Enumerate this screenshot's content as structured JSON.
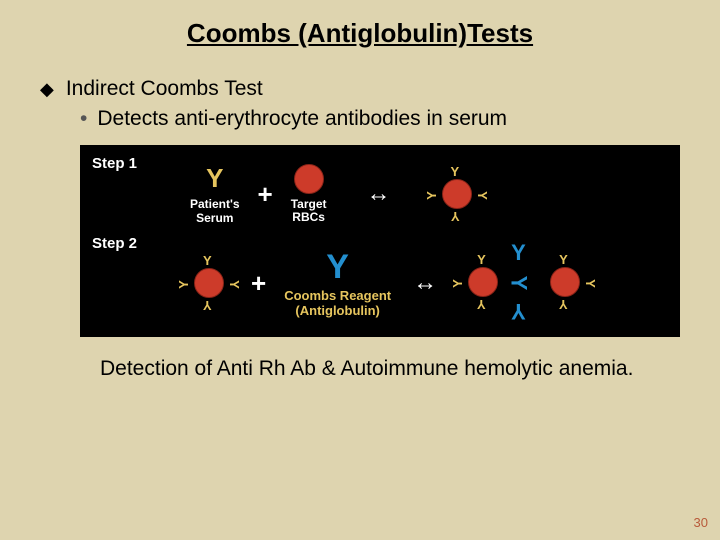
{
  "slide": {
    "title": "Coombs (Antiglobulin)Tests",
    "main_bullet": "Indirect Coombs Test",
    "sub_bullet": "Detects anti-erythrocyte antibodies in serum",
    "detection_text": "Detection of Anti Rh Ab & Autoimmune hemolytic anemia.",
    "page_number": "30"
  },
  "diagram": {
    "background": "#000000",
    "step1": {
      "label": "Step 1",
      "patient_serum_caption": "Patient's\nSerum",
      "target_rbc_caption": "Target\nRBCs",
      "plus": "+",
      "arrow": "↔",
      "antibody_y": "Y",
      "antibody_color": "#e6c55e",
      "rbc_color": "#cd3b2a"
    },
    "step2": {
      "label": "Step 2",
      "plus": "+",
      "arrow": "↔",
      "coombs_caption": "Coombs Reagent\n(Antiglobulin)",
      "coombs_y": "Y",
      "coombs_color": "#238fcf",
      "antibody_color": "#e6c55e",
      "rbc_color": "#cd3b2a"
    }
  },
  "colors": {
    "slide_bg": "#ded4af",
    "text": "#000000",
    "page_num": "#b85a3a"
  }
}
